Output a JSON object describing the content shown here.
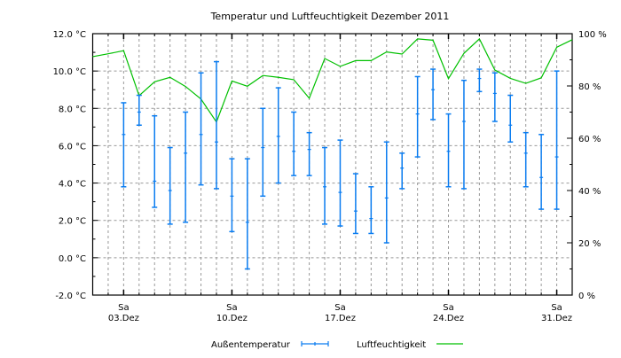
{
  "chart_data": {
    "type": "line",
    "title": "Temperatur und Luftfeuchtigkeit Dezember 2011",
    "xlim": [
      1,
      32
    ],
    "ylim_left": [
      -2,
      12
    ],
    "ylim_right": [
      0,
      100
    ],
    "grid": true,
    "y_left_ticks": [
      "-2.0 °C",
      "0.0 °C",
      "2.0 °C",
      "4.0 °C",
      "6.0 °C",
      "8.0 °C",
      "10.0 °C",
      "12.0 °C"
    ],
    "y_left_values": [
      -2,
      0,
      2,
      4,
      6,
      8,
      10,
      12
    ],
    "y_right_ticks": [
      "0 %",
      "20 %",
      "40 %",
      "60 %",
      "80 %",
      "100 %"
    ],
    "y_right_values": [
      0,
      20,
      40,
      60,
      80,
      100
    ],
    "x_ticks": [
      {
        "day": 3,
        "weekday": "Sa",
        "date": "03.Dez"
      },
      {
        "day": 10,
        "weekday": "Sa",
        "date": "10.Dez"
      },
      {
        "day": 17,
        "weekday": "Sa",
        "date": "17.Dez"
      },
      {
        "day": 24,
        "weekday": "Sa",
        "date": "24.Dez"
      },
      {
        "day": 31,
        "weekday": "Sa",
        "date": "31.Dez"
      }
    ],
    "legend": {
      "position": "bottom"
    },
    "series": [
      {
        "name": "Außentemperatur",
        "type": "errorbar",
        "axis": "left",
        "color": "#0a7cf0",
        "days": [
          3,
          4,
          5,
          6,
          7,
          8,
          9,
          10,
          11,
          12,
          13,
          14,
          15,
          16,
          17,
          18,
          19,
          20,
          21,
          22,
          23,
          24,
          25,
          26,
          27,
          28,
          29,
          30,
          31
        ],
        "max": [
          8.3,
          8.7,
          7.6,
          5.9,
          7.8,
          9.9,
          10.5,
          5.3,
          5.3,
          8.0,
          9.1,
          7.8,
          6.7,
          5.9,
          6.3,
          4.5,
          3.8,
          6.2,
          5.6,
          9.7,
          10.1,
          7.7,
          9.5,
          10.1,
          9.9,
          8.7,
          6.7,
          6.6,
          10.0
        ],
        "mean": [
          6.6,
          7.8,
          4.1,
          3.6,
          5.6,
          6.6,
          6.2,
          3.3,
          1.9,
          5.9,
          6.5,
          5.7,
          5.8,
          3.8,
          3.5,
          2.5,
          2.1,
          3.2,
          4.8,
          7.7,
          9.0,
          5.7,
          7.3,
          9.6,
          8.8,
          7.1,
          5.6,
          4.3,
          5.4
        ],
        "min": [
          3.8,
          7.1,
          2.7,
          1.8,
          1.9,
          3.9,
          3.7,
          1.4,
          -0.6,
          3.3,
          4.0,
          4.4,
          4.4,
          1.8,
          1.7,
          1.3,
          1.3,
          0.8,
          3.7,
          5.4,
          7.4,
          3.8,
          3.7,
          8.9,
          7.3,
          6.2,
          3.8,
          2.6,
          2.6
        ]
      },
      {
        "name": "Luftfeuchtigkeit",
        "type": "line",
        "axis": "right",
        "color": "#00c000",
        "days": [
          1,
          2,
          3,
          4,
          5,
          6,
          7,
          8,
          9,
          10,
          11,
          12,
          13,
          14,
          15,
          16,
          17,
          18,
          19,
          20,
          21,
          22,
          23,
          24,
          25,
          26,
          27,
          28,
          29,
          30,
          31,
          32
        ],
        "values": [
          91.2,
          92.3,
          93.5,
          76.3,
          81.6,
          83.3,
          79.8,
          75.0,
          66.2,
          81.9,
          79.9,
          84.0,
          83.3,
          82.4,
          75.3,
          90.5,
          87.5,
          89.7,
          89.7,
          93.0,
          92.2,
          98.0,
          97.5,
          82.8,
          92.5,
          98.0,
          86.1,
          82.9,
          81.0,
          83.1,
          94.8,
          97.7
        ]
      }
    ]
  }
}
